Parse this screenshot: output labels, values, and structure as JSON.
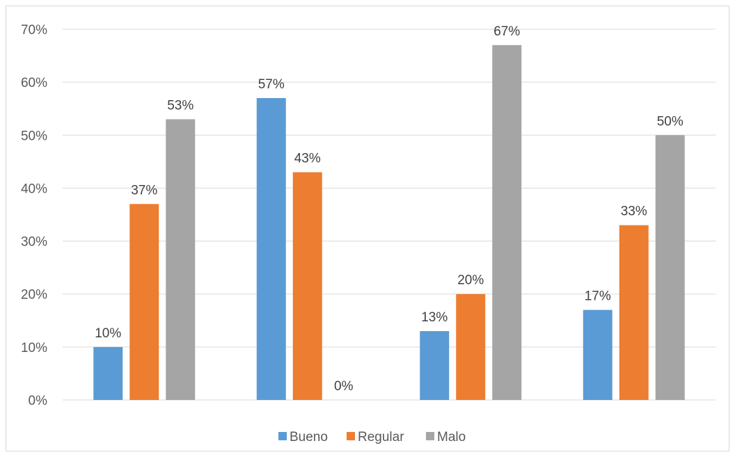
{
  "chart_data": {
    "type": "bar",
    "categories": [
      "",
      "",
      "",
      ""
    ],
    "series": [
      {
        "name": "Bueno",
        "color": "#5b9bd5",
        "values": [
          10,
          57,
          13,
          17
        ],
        "labels": [
          "10%",
          "57%",
          "13%",
          "17%"
        ]
      },
      {
        "name": "Regular",
        "color": "#ed7d31",
        "values": [
          37,
          43,
          20,
          33
        ],
        "labels": [
          "37%",
          "43%",
          "20%",
          "33%"
        ]
      },
      {
        "name": "Malo",
        "color": "#a5a5a5",
        "values": [
          53,
          0,
          67,
          50
        ],
        "labels": [
          "53%",
          "0%",
          "67%",
          "50%"
        ]
      }
    ],
    "title": "",
    "xlabel": "",
    "ylabel": "",
    "ylim": [
      0,
      70
    ],
    "yticks": [
      0,
      10,
      20,
      30,
      40,
      50,
      60,
      70
    ],
    "ytick_labels": [
      "0%",
      "10%",
      "20%",
      "30%",
      "40%",
      "50%",
      "60%",
      "70%"
    ],
    "grid": true,
    "legend_position": "bottom"
  }
}
